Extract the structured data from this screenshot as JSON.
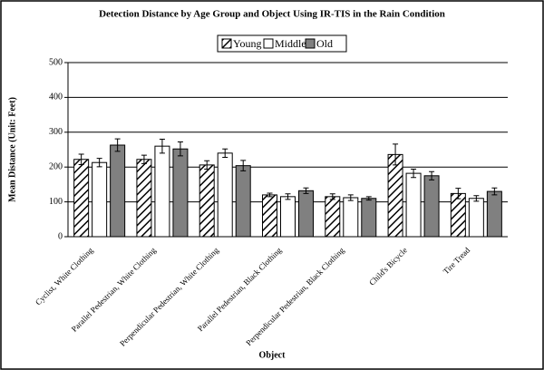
{
  "chart_data": {
    "type": "bar",
    "title": "Detection Distance by Age Group and Object Using IR-TIS  in the Rain Condition",
    "x_label": "Object",
    "y_label": "Mean Distance (Unit:  Feet)",
    "categories": [
      "Cyclist, White Clothing",
      "Parallel  Pedestrian, White Clothing",
      "Perpendicular Pedestrian, White Clothing",
      "Parallel  Pedestrian, Black Clothing",
      "Perpendicular Pedestrian, Black Clothing",
      "Child's Bicycle",
      "Tire Tread"
    ],
    "series": [
      {
        "name": "Young",
        "color": "#000000",
        "hatch": true,
        "values": [
          222,
          222,
          206,
          120,
          115,
          236,
          124
        ],
        "errors": [
          15,
          12,
          12,
          5,
          8,
          30,
          15
        ]
      },
      {
        "name": "Middle",
        "color": "#ffffff",
        "hatch": false,
        "values": [
          213,
          260,
          240,
          115,
          112,
          182,
          110
        ],
        "errors": [
          12,
          20,
          12,
          8,
          8,
          12,
          8
        ]
      },
      {
        "name": "Old",
        "color": "#808080",
        "hatch": false,
        "values": [
          263,
          252,
          204,
          132,
          110,
          175,
          130
        ],
        "errors": [
          18,
          20,
          15,
          8,
          5,
          12,
          10
        ]
      }
    ],
    "ylim": [
      0,
      500
    ],
    "yticks": [
      0,
      100,
      200,
      300,
      400,
      500
    ],
    "grid": true
  }
}
